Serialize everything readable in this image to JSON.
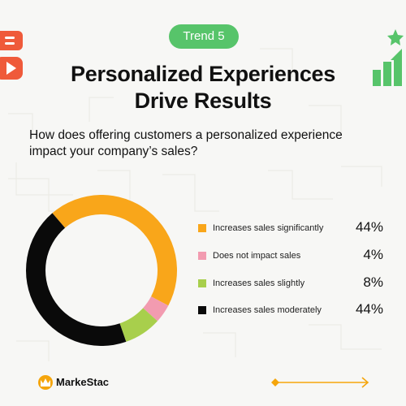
{
  "badge": "Trend 5",
  "title_lines": [
    "Personalized Experiences",
    "Drive Results"
  ],
  "question": "How does offering customers a personalized experience impact your company’s sales?",
  "brand": {
    "name": "MarkeStac"
  },
  "icons": {
    "top_left": "video-play-icon",
    "top_right": "growth-chart-star-icon",
    "brand_logo": "markestac-logo-icon",
    "bottom_right": "double-arrow-icon"
  },
  "colors": {
    "accent_green": "#57c46a",
    "orange": "#f9a61a",
    "pink": "#f29bb0",
    "lime": "#a8cf4c",
    "black": "#0a0a0a",
    "corner_red": "#ef5a3a"
  },
  "chart_data": {
    "type": "pie",
    "donut": true,
    "title": "",
    "categories": [
      "Increases sales significantly",
      "Does not impact sales",
      "Increases sales slightly",
      "Increases sales moderately"
    ],
    "values": [
      44,
      4,
      8,
      44
    ],
    "value_labels": [
      "44%",
      "4%",
      "8%",
      "44%"
    ],
    "colors": [
      "#f9a61a",
      "#f29bb0",
      "#a8cf4c",
      "#0a0a0a"
    ],
    "legend": "right"
  }
}
